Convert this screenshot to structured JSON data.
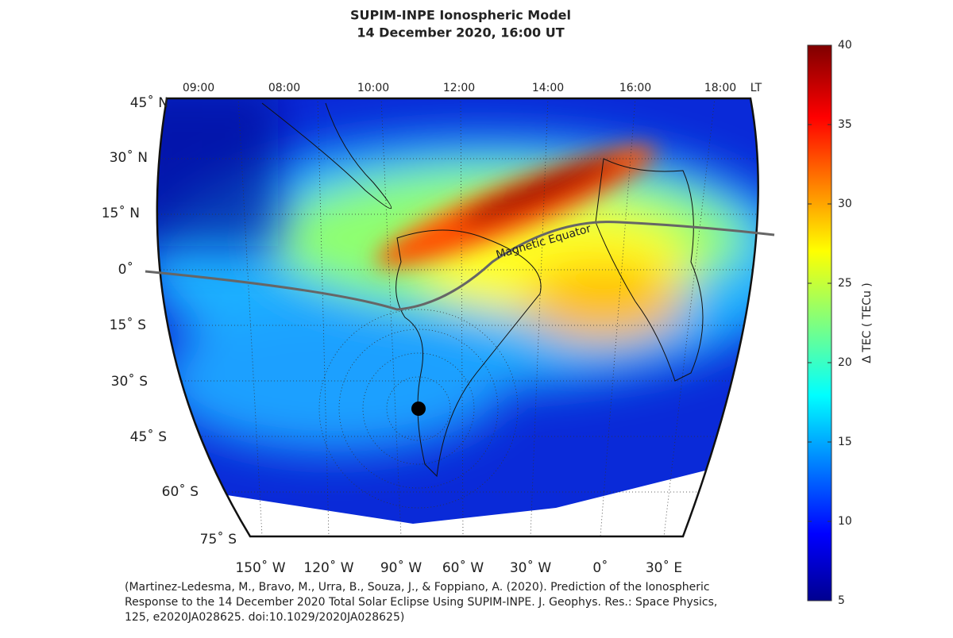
{
  "title": [
    "SUPIM-INPE Ionospheric Model",
    "14 December 2020, 16:00 UT"
  ],
  "local_time_labels": [
    "09:00",
    "08:00",
    "10:00",
    "12:00",
    "14:00",
    "16:00",
    "18:00",
    "LT"
  ],
  "latitude_labels": [
    "45˚ N",
    "30˚ N",
    "15˚ N",
    "0˚",
    "15˚ S",
    "30˚ S",
    "45˚ S",
    "60˚ S",
    "75˚ S"
  ],
  "longitude_labels": [
    "150˚ W",
    "120˚ W",
    "90˚ W",
    "60˚ W",
    "30˚ W",
    "0˚",
    "30˚ E"
  ],
  "annotation": "Magnetic Equator",
  "colorbar": {
    "label": "Δ TEC ( TECu )",
    "clim": [
      5,
      40
    ],
    "ticks": [
      5,
      10,
      15,
      20,
      25,
      30,
      35,
      40
    ]
  },
  "citation": [
    "(Martinez-Ledesma, M., Bravo, M., Urra, B., Souza, J., & Foppiano, A. (2020). Prediction of the Ionospheric",
    "Response to the 14 December 2020 Total Solar Eclipse Using SUPIM-INPE. J. Geophys. Res.: Space Physics,",
    "125, e2020JA028625. doi:10.1029/2020JA028625)"
  ]
}
